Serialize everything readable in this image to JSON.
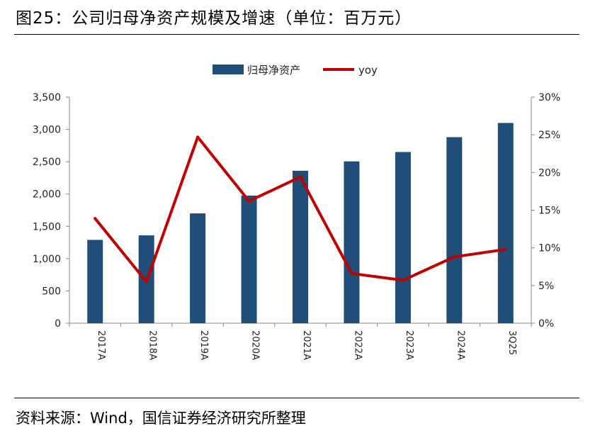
{
  "header": {
    "title": "图25：公司归母净资产规模及增速（单位：百万元）"
  },
  "footer": {
    "source": "资料来源：Wind，国信证券经济研究所整理"
  },
  "colors": {
    "bar": "#1f4e79",
    "line": "#c00000",
    "axis": "#888888"
  },
  "chart_data": {
    "type": "bar",
    "categories": [
      "2017A",
      "2018A",
      "2019A",
      "2020A",
      "2021A",
      "2022A",
      "2023A",
      "2024A",
      "3Q25"
    ],
    "series": [
      {
        "name": "归母净资产",
        "type": "bar",
        "axis": "left",
        "values": [
          1290,
          1360,
          1700,
          1975,
          2360,
          2505,
          2650,
          2880,
          3100
        ]
      },
      {
        "name": "yoy",
        "type": "line",
        "axis": "right",
        "values": [
          13.9,
          5.5,
          24.7,
          16.2,
          19.4,
          6.6,
          5.7,
          8.8,
          9.8
        ]
      }
    ],
    "y_left": {
      "min": 0,
      "max": 3500,
      "ticks": [
        0,
        500,
        1000,
        1500,
        2000,
        2500,
        3000,
        3500
      ],
      "tick_labels": [
        "0",
        "500",
        "1,000",
        "1,500",
        "2,000",
        "2,500",
        "3,000",
        "3,500"
      ]
    },
    "y_right": {
      "min": 0,
      "max": 30,
      "ticks": [
        0,
        5,
        10,
        15,
        20,
        25,
        30
      ],
      "tick_labels": [
        "0%",
        "5%",
        "10%",
        "15%",
        "20%",
        "25%",
        "30%"
      ]
    },
    "legend_position": "top-center",
    "grid": false
  }
}
